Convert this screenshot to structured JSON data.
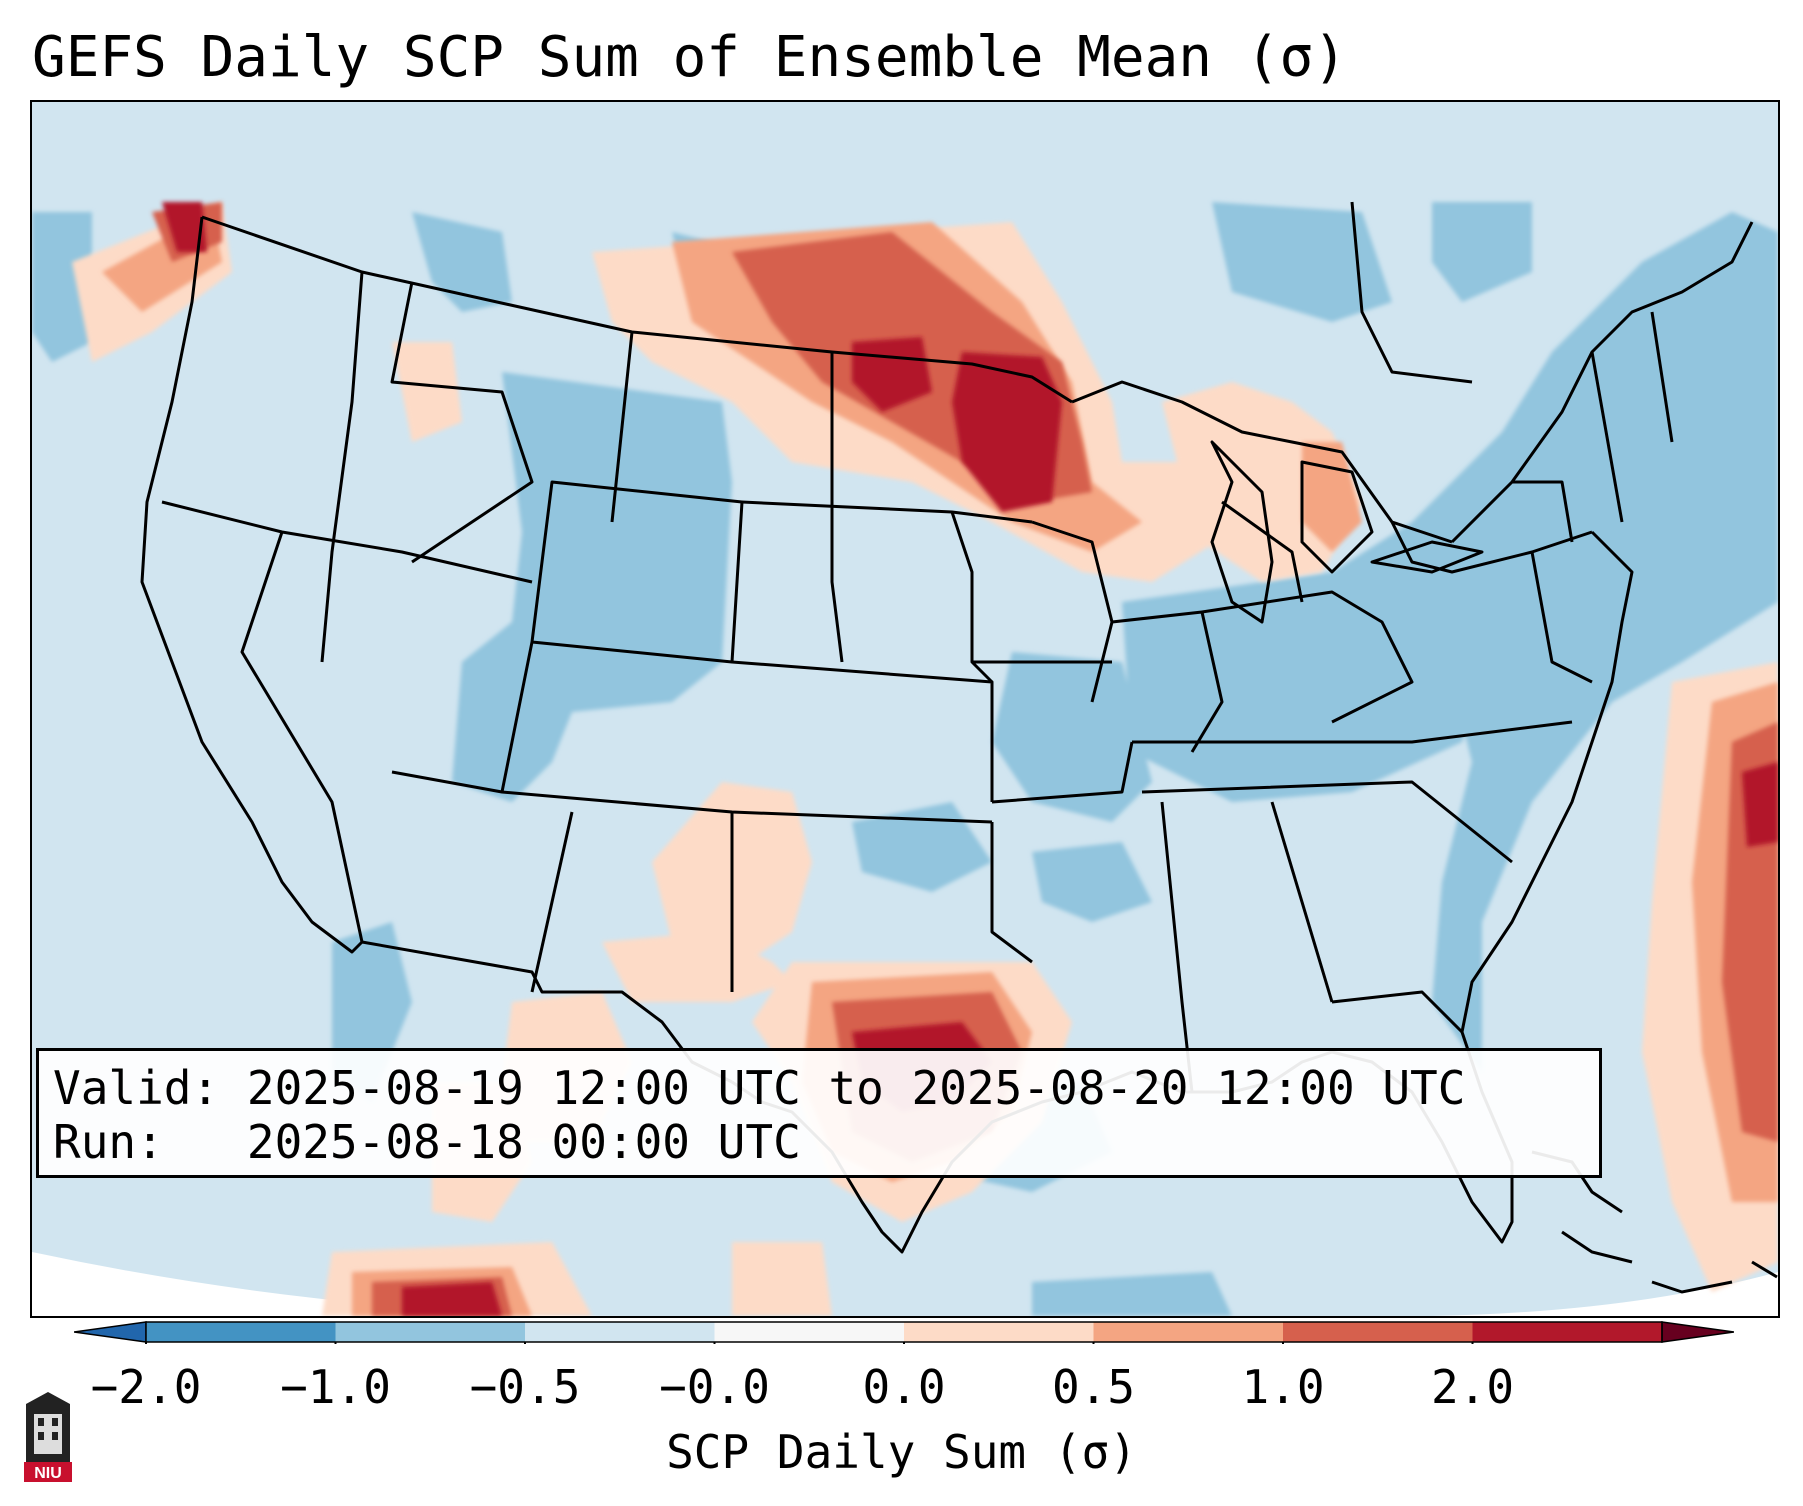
{
  "title": "GEFS Daily SCP Sum of Ensemble Mean (σ)",
  "info": {
    "valid_label": "Valid:",
    "valid_value": "2025-08-19 12:00 UTC to 2025-08-20 12:00 UTC",
    "run_label": "Run:",
    "run_value": "2025-08-18 00:00 UTC"
  },
  "colorbar": {
    "label": "SCP Daily Sum (σ)",
    "tick_labels": [
      "−2.0",
      "−1.0",
      "−0.5",
      "−0.0",
      "0.0",
      "0.5",
      "1.0",
      "2.0"
    ],
    "colors": [
      "#4393c3",
      "#92c5de",
      "#d1e5f0",
      "#f7f7f7",
      "#fddbc7",
      "#f4a582",
      "#d6604d",
      "#b2182b"
    ],
    "extend": "both"
  },
  "map": {
    "extent": "Continental United States",
    "background_color": "#d1e5f0",
    "anomaly_regions": [
      {
        "name": "Northern Plains / Upper Midwest",
        "level": "high",
        "value": 2.0
      },
      {
        "name": "North-Central Texas",
        "level": "high",
        "value": 2.0
      },
      {
        "name": "Western Atlantic offshore",
        "level": "high",
        "value": 2.0
      },
      {
        "name": "Pacific Northwest coast",
        "level": "high",
        "value": 1.5
      },
      {
        "name": "Northern Mexico / Baja",
        "level": "high",
        "value": 1.5
      },
      {
        "name": "Michigan",
        "level": "moderate",
        "value": 0.7
      },
      {
        "name": "Southwest New Mexico",
        "level": "moderate",
        "value": 0.5
      },
      {
        "name": "Rocky Mountains",
        "level": "low",
        "value": -0.7
      },
      {
        "name": "Ohio Valley / Mid-Atlantic",
        "level": "low",
        "value": -0.7
      },
      {
        "name": "Southeast coast",
        "level": "low",
        "value": -0.7
      }
    ]
  },
  "logo": {
    "text": "NIU"
  }
}
